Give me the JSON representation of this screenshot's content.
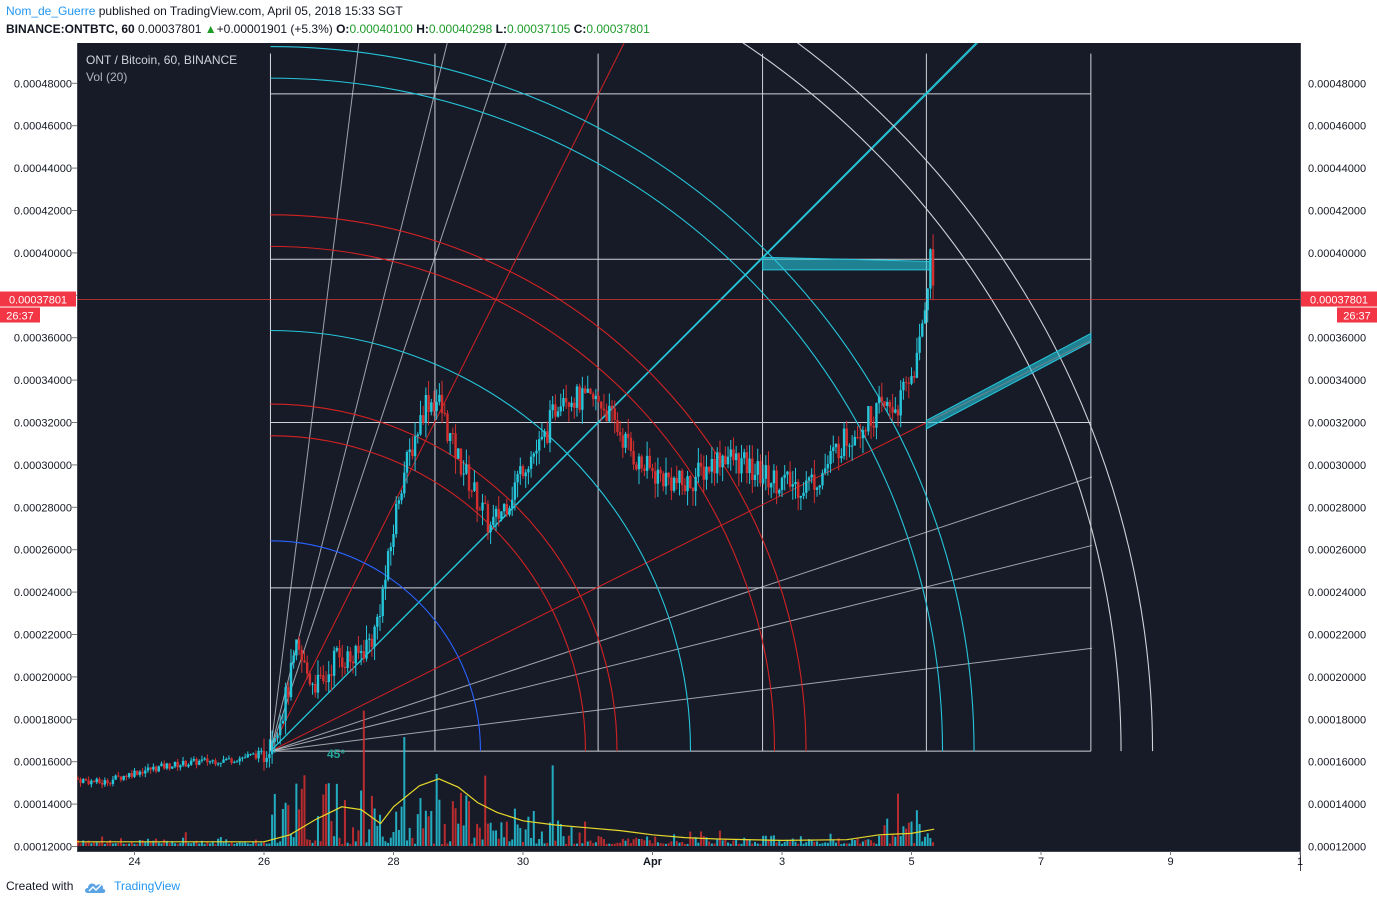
{
  "header": {
    "user": "Nom_de_Guerre",
    "published": "published on TradingView.com, April 05, 2018 15:33 SGT",
    "symbol": "BINANCE:ONTBTC, 60",
    "last": "0.00037801",
    "change": "+0.00001901 (+5.3%)",
    "o_label": "O:",
    "o": "0.00040100",
    "h_label": "H:",
    "h": "0.00040298",
    "l_label": "L:",
    "l": "0.00037105",
    "c_label": "C:",
    "c": "0.00037801"
  },
  "legend": {
    "title": "ONT / Bitcoin, 60, BINANCE",
    "vol": "Vol (20)"
  },
  "price_tag": {
    "price": "0.00037801",
    "countdown": "26:37"
  },
  "angle_label": "45°",
  "footer": {
    "created": "Created with",
    "brand": "TradingView"
  },
  "colors": {
    "background": "#171b28",
    "up": "#26c6da",
    "down": "#d32f2f",
    "grid_white": "#cfd2d8",
    "fan_red": "#d32222",
    "fan_cyan": "#26c6da",
    "arc_blue": "#2962ff",
    "vol_ma": "#e5d82b",
    "price_line": "#e53935"
  },
  "chart_data": {
    "type": "candlestick",
    "y_axis": {
      "min": 0.00012,
      "max": 0.00049,
      "ticks": [
        "0.00012000",
        "0.00014000",
        "0.00016000",
        "0.00018000",
        "0.00020000",
        "0.00022000",
        "0.00024000",
        "0.00026000",
        "0.00028000",
        "0.00030000",
        "0.00032000",
        "0.00034000",
        "0.00036000",
        "0.00038000",
        "0.00040000",
        "0.00042000",
        "0.00044000",
        "0.00046000",
        "0.00048000"
      ]
    },
    "x_axis": {
      "ticks": [
        {
          "label": "24",
          "day": 24
        },
        {
          "label": "26",
          "day": 26
        },
        {
          "label": "28",
          "day": 28
        },
        {
          "label": "30",
          "day": 30
        },
        {
          "label": "Apr",
          "day": 32
        },
        {
          "label": "3",
          "day": 34
        },
        {
          "label": "5",
          "day": 36
        },
        {
          "label": "7",
          "day": 38
        },
        {
          "label": "9",
          "day": 40
        },
        {
          "label": "1",
          "day": 42
        }
      ]
    },
    "series": [
      {
        "values": [
          [
            23.0,
            0.000152
          ],
          [
            23.5,
            0.00015
          ],
          [
            24.0,
            0.000155
          ],
          [
            24.5,
            0.000158
          ],
          [
            25.0,
            0.00016
          ],
          [
            25.5,
            0.000161
          ],
          [
            26.0,
            0.000164
          ],
          [
            26.3,
            0.000185
          ],
          [
            26.5,
            0.000212
          ],
          [
            26.7,
            0.0002
          ],
          [
            26.9,
            0.000195
          ],
          [
            27.1,
            0.00021
          ],
          [
            27.4,
            0.000208
          ],
          [
            27.7,
            0.00022
          ],
          [
            27.9,
            0.00025
          ],
          [
            28.1,
            0.00029
          ],
          [
            28.3,
            0.00031
          ],
          [
            28.5,
            0.00033
          ],
          [
            28.7,
            0.00033
          ],
          [
            28.9,
            0.00031
          ],
          [
            29.2,
            0.00029
          ],
          [
            29.5,
            0.00027
          ],
          [
            29.8,
            0.000285
          ],
          [
            30.0,
            0.0003
          ],
          [
            30.3,
            0.00031
          ],
          [
            30.6,
            0.000335
          ],
          [
            30.9,
            0.00033
          ],
          [
            31.2,
            0.00033
          ],
          [
            31.5,
            0.000315
          ],
          [
            31.8,
            0.0003
          ],
          [
            32.1,
            0.000295
          ],
          [
            32.5,
            0.00029
          ],
          [
            32.8,
            0.000298
          ],
          [
            33.1,
            0.000305
          ],
          [
            33.4,
            0.0003
          ],
          [
            33.7,
            0.000295
          ],
          [
            34.0,
            0.000292
          ],
          [
            34.3,
            0.00029
          ],
          [
            34.6,
            0.000295
          ],
          [
            34.9,
            0.00031
          ],
          [
            35.2,
            0.000318
          ],
          [
            35.5,
            0.000326
          ],
          [
            35.8,
            0.000328
          ],
          [
            36.1,
            0.00035
          ],
          [
            36.3,
            0.0004
          ],
          [
            36.35,
            0.000378
          ]
        ]
      }
    ],
    "volume_ma": [
      [
        23.0,
        0.3
      ],
      [
        26.0,
        0.3
      ],
      [
        26.4,
        0.8
      ],
      [
        26.8,
        1.9
      ],
      [
        27.2,
        2.8
      ],
      [
        27.5,
        2.6
      ],
      [
        27.8,
        1.6
      ],
      [
        28.0,
        2.8
      ],
      [
        28.4,
        4.3
      ],
      [
        28.7,
        4.8
      ],
      [
        29.0,
        4.2
      ],
      [
        29.3,
        3.1
      ],
      [
        29.6,
        2.4
      ],
      [
        30.0,
        1.8
      ],
      [
        30.5,
        1.5
      ],
      [
        31.0,
        1.3
      ],
      [
        31.5,
        1.1
      ],
      [
        32.0,
        0.8
      ],
      [
        32.5,
        0.6
      ],
      [
        33.0,
        0.5
      ],
      [
        34.0,
        0.4
      ],
      [
        35.0,
        0.45
      ],
      [
        35.5,
        0.8
      ],
      [
        36.0,
        0.9
      ],
      [
        36.35,
        1.2
      ]
    ],
    "gann": {
      "origin": [
        26.1,
        0.000165
      ],
      "end": [
        39.0,
        0.000494
      ],
      "grid_x_levels": [
        26.1,
        28.64,
        31.16,
        33.7,
        36.23,
        38.77
      ],
      "grid_y_levels": [
        0.000165,
        0.000242,
        0.00032,
        0.000397,
        0.000475
      ]
    }
  }
}
